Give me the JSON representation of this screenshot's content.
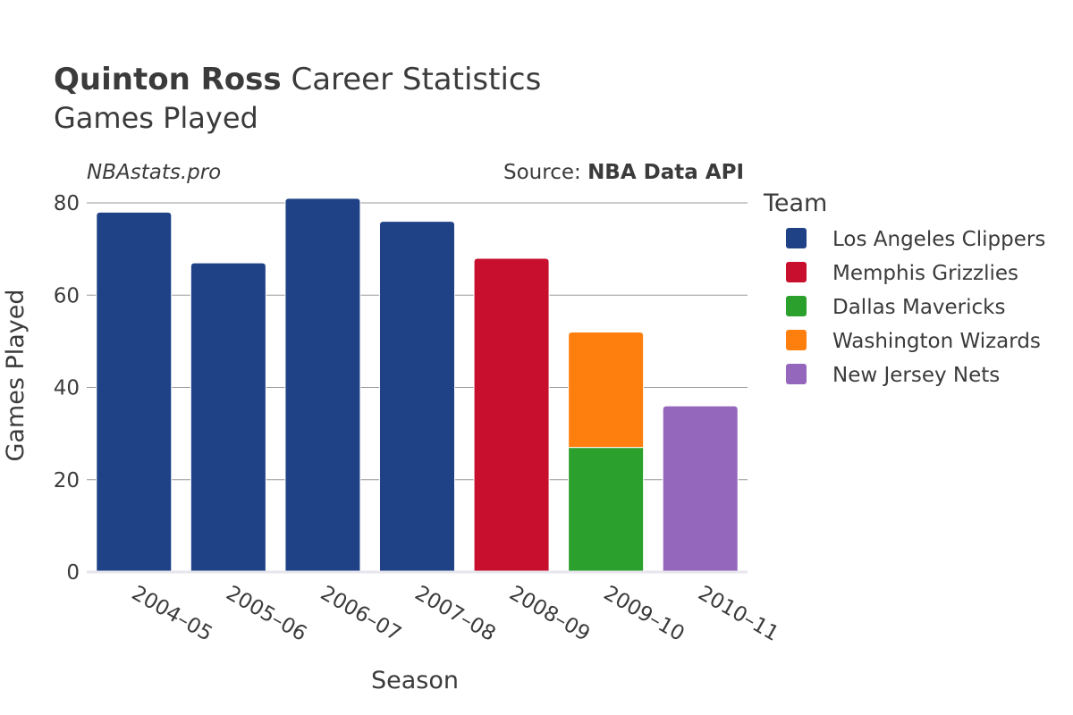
{
  "chart_data": {
    "type": "bar",
    "title_bold": "Quinton Ross",
    "title_rest": " Career Statistics",
    "subtitle": "Games Played",
    "watermark": "NBAstats.pro",
    "source_prefix": "Source: ",
    "source_bold": "NBA Data API",
    "xlabel": "Season",
    "ylabel": "Games Played",
    "ylim": [
      0,
      85
    ],
    "yticks": [
      0,
      20,
      40,
      60,
      80
    ],
    "categories": [
      "2004–05",
      "2005–06",
      "2006–07",
      "2007–08",
      "2008–09",
      "2009–10",
      "2010–11"
    ],
    "legend_title": "Team",
    "series": [
      {
        "name": "Los Angeles Clippers",
        "color": "#1f4287",
        "values": [
          78,
          67,
          81,
          76,
          0,
          0,
          0
        ]
      },
      {
        "name": "Memphis Grizzlies",
        "color": "#c8102e",
        "values": [
          0,
          0,
          0,
          0,
          68,
          0,
          0
        ]
      },
      {
        "name": "Dallas Mavericks",
        "color": "#2ca02c",
        "values": [
          0,
          0,
          0,
          0,
          0,
          27,
          0
        ]
      },
      {
        "name": "Washington Wizards",
        "color": "#ff7f0e",
        "values": [
          0,
          0,
          0,
          0,
          0,
          25,
          0
        ]
      },
      {
        "name": "New Jersey Nets",
        "color": "#9467bd",
        "values": [
          0,
          0,
          0,
          0,
          0,
          0,
          36
        ]
      }
    ]
  }
}
